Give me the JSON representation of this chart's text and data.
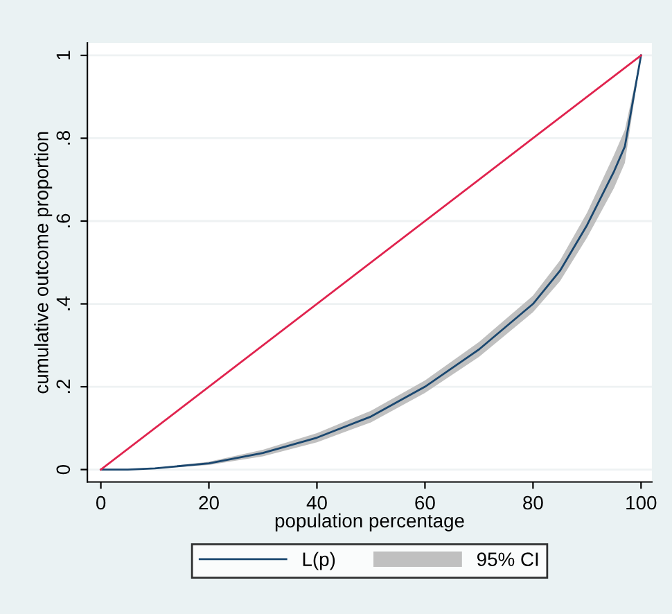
{
  "chart_data": {
    "type": "line",
    "xlabel": "population percentage",
    "ylabel": "cumulative outcome proportion",
    "xlim": [
      -2.5,
      102
    ],
    "ylim": [
      -0.03,
      1.03
    ],
    "xticks": [
      0,
      20,
      40,
      60,
      80,
      100
    ],
    "yticks": [
      0,
      {
        "value": 0.2,
        "label": ".2"
      },
      {
        "value": 0.4,
        "label": ".4"
      },
      {
        "value": 0.6,
        "label": ".6"
      },
      {
        "value": 0.8,
        "label": ".8"
      },
      1
    ],
    "grid": "y",
    "legend": "bottom",
    "annotations": [
      "95% CI"
    ],
    "series": [
      {
        "name": "L(p)",
        "color": "#1a476f",
        "x": [
          0,
          5,
          10,
          20,
          30,
          40,
          50,
          60,
          70,
          80,
          85,
          90,
          95,
          97,
          100
        ],
        "values": [
          0,
          0,
          0.003,
          0.015,
          0.04,
          0.077,
          0.128,
          0.2,
          0.29,
          0.4,
          0.48,
          0.59,
          0.72,
          0.78,
          1
        ],
        "lower": [
          0,
          0,
          0.002,
          0.011,
          0.032,
          0.066,
          0.114,
          0.185,
          0.272,
          0.38,
          0.455,
          0.56,
          0.68,
          0.74,
          1
        ],
        "upper": [
          0,
          0,
          0.004,
          0.019,
          0.048,
          0.088,
          0.142,
          0.215,
          0.308,
          0.42,
          0.505,
          0.62,
          0.76,
          0.82,
          1
        ]
      },
      {
        "color": "#e0234e",
        "x": [
          0,
          100
        ],
        "values": [
          0,
          1
        ]
      }
    ]
  }
}
